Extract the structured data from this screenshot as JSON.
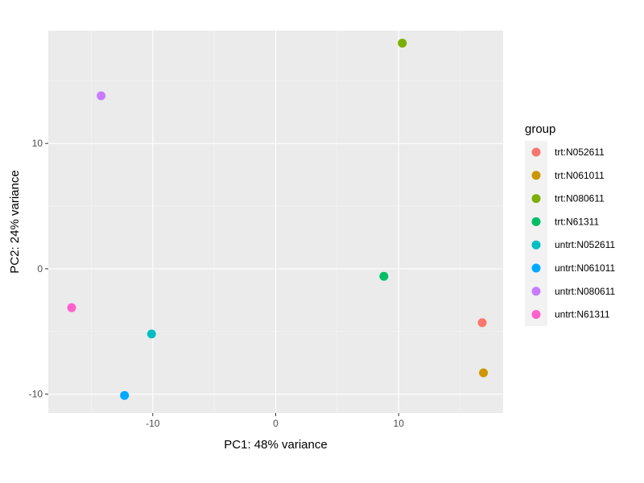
{
  "chart_data": {
    "type": "scatter",
    "xlabel": "PC1: 48% variance",
    "ylabel": "PC2: 24% variance",
    "xlim": [
      -18.5,
      18.5
    ],
    "ylim": [
      -11.5,
      19.0
    ],
    "x_ticks": [
      -10,
      0,
      10
    ],
    "x_tick_labels": [
      "-10",
      "0",
      "10"
    ],
    "y_ticks": [
      -10,
      0,
      10
    ],
    "y_tick_labels": [
      "-10",
      "0",
      "10"
    ],
    "grid": true,
    "background": "#ebebeb",
    "legend": {
      "title": "group",
      "position": "right"
    },
    "series": [
      {
        "name": "trt:N052611",
        "color": "#F8766D",
        "x": 16.8,
        "y": -4.3
      },
      {
        "name": "trt:N061011",
        "color": "#CD9600",
        "x": 16.9,
        "y": -8.3
      },
      {
        "name": "trt:N080611",
        "color": "#7CAE00",
        "x": 10.3,
        "y": 18.0
      },
      {
        "name": "trt:N61311",
        "color": "#00BE67",
        "x": 8.8,
        "y": -0.6
      },
      {
        "name": "untrt:N052611",
        "color": "#00BFC4",
        "x": -10.1,
        "y": -5.2
      },
      {
        "name": "untrt:N061011",
        "color": "#00A9FF",
        "x": -12.3,
        "y": -10.1
      },
      {
        "name": "untrt:N080611",
        "color": "#C77CFF",
        "x": -14.2,
        "y": 13.8
      },
      {
        "name": "untrt:N61311",
        "color": "#FF61CC",
        "x": -16.6,
        "y": -3.1
      }
    ]
  }
}
